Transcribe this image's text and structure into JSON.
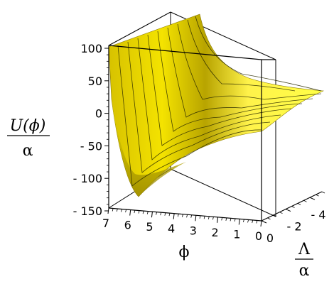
{
  "chart_data": {
    "type": "surface",
    "axes": {
      "x": {
        "label": "ϕ",
        "range": [
          0,
          7
        ],
        "ticks": [
          "7",
          "6",
          "5",
          "4",
          "3",
          "2",
          "1",
          "0"
        ]
      },
      "y": {
        "label_numerator": "Λ",
        "label_denominator": "α",
        "range": [
          -5,
          0
        ],
        "ticks": [
          "- 4",
          "- 2",
          "0"
        ]
      },
      "z": {
        "label_numerator": "U(ϕ)",
        "label_denominator": "α",
        "range": [
          -150,
          100
        ],
        "ticks": [
          "100",
          "50",
          "0",
          "- 50",
          "- 100",
          "- 150"
        ]
      }
    },
    "grid": false,
    "box": true,
    "colors": {
      "surface": "#e8d300",
      "surface_light": "#ffff3a",
      "mesh": "#2a2a00",
      "box": "#000000"
    },
    "surface_profile_at_Lambda_0": [
      {
        "phi": 7,
        "U": 100
      },
      {
        "phi": 6.5,
        "U": 20
      },
      {
        "phi": 6,
        "U": -110
      },
      {
        "phi": 5.5,
        "U": -80
      },
      {
        "phi": 5,
        "U": -35
      },
      {
        "phi": 4,
        "U": 5
      },
      {
        "phi": 3,
        "U": 18
      },
      {
        "phi": 2,
        "U": 24
      },
      {
        "phi": 1,
        "U": 28
      },
      {
        "phi": 0,
        "U": 30
      }
    ],
    "surface_profile_at_Lambda_min5": [
      {
        "phi": 7,
        "U": 100
      },
      {
        "phi": 6,
        "U": 60
      },
      {
        "phi": 5,
        "U": 40
      },
      {
        "phi": 4,
        "U": 30
      },
      {
        "phi": 3,
        "U": 27
      },
      {
        "phi": 2,
        "U": 24
      },
      {
        "phi": 1,
        "U": 22
      },
      {
        "phi": 0,
        "U": 20
      }
    ]
  }
}
